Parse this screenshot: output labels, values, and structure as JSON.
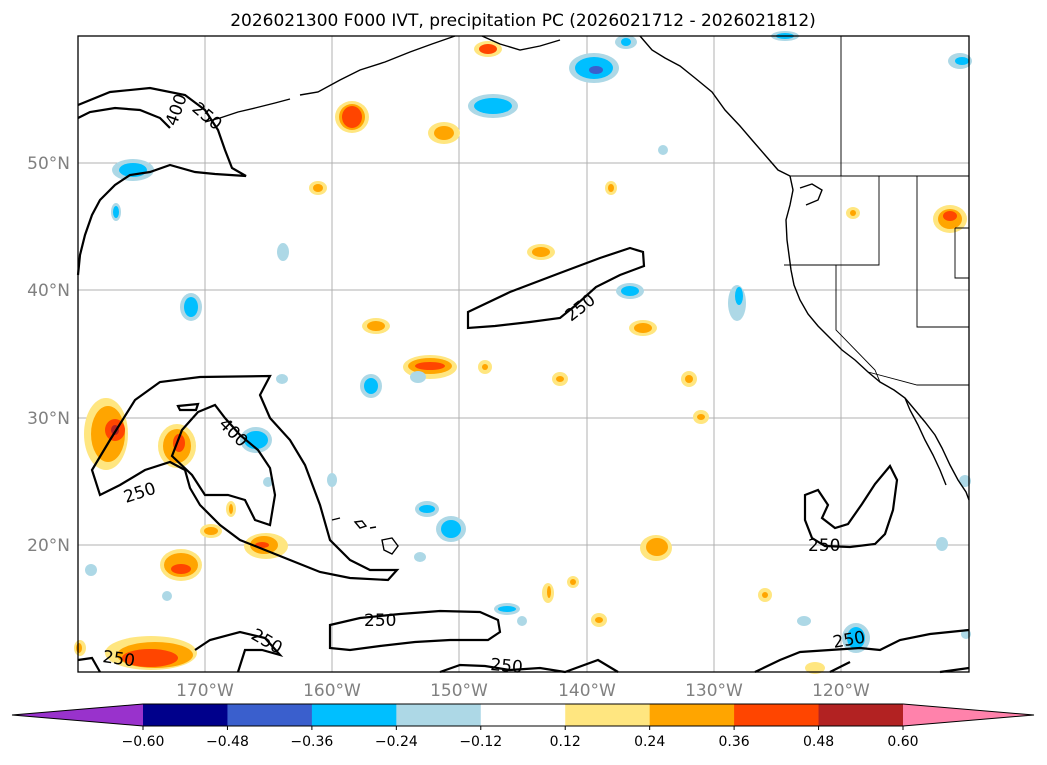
{
  "title": "2026021300 F000 IVT, precipitation PC (2026021712 - 2026021812)",
  "lat_labels": [
    "50°N",
    "40°N",
    "30°N",
    "20°N"
  ],
  "lon_labels": [
    "170°W",
    "160°W",
    "150°W",
    "140°W",
    "130°W",
    "120°W"
  ],
  "colorbar": {
    "ticks": [
      "−0.60",
      "−0.48",
      "−0.36",
      "−0.24",
      "−0.12",
      "0.12",
      "0.24",
      "0.36",
      "0.48",
      "0.60"
    ],
    "colors": [
      "#9932cc",
      "#00008b",
      "#3a5fcd",
      "#00bfff",
      "#add8e6",
      "#ffffff",
      "#ffe680",
      "#ffa500",
      "#ff4500",
      "#b22222",
      "#ff82ab"
    ]
  },
  "ivt_labels": {
    "l400_top": "400",
    "l250_top": "250",
    "l250_mid": "250",
    "l400_left": "400",
    "l250_left": "250",
    "l250_east": "250",
    "l250_b1": "250",
    "l250_b2": "250",
    "l250_b3": "250",
    "l250_b4": "250",
    "l250_b5": "250"
  }
}
